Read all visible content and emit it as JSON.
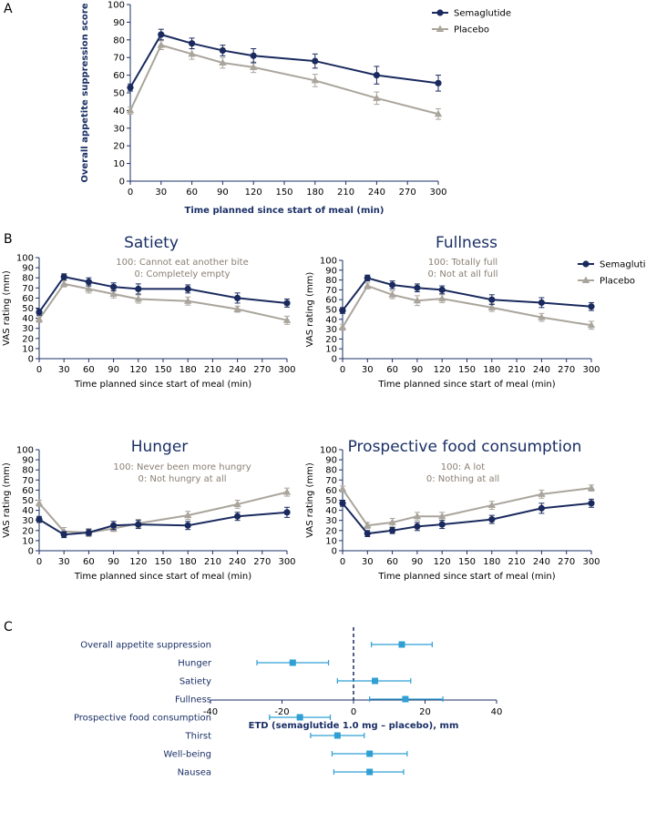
{
  "colors": {
    "semaglutide": "#1a2a5e",
    "placebo": "#aaa59c",
    "forest": "#2f9fd4",
    "axis": "#1a2f66",
    "annotation": "#8a7f73"
  },
  "panel_labels": [
    "A",
    "B",
    "C"
  ],
  "chart_data": [
    {
      "id": "A",
      "type": "line",
      "title": "",
      "xlabel": "Time planned since start of meal (min)",
      "ylabel": "Overall appetite suppression score",
      "x": [
        0,
        30,
        60,
        90,
        120,
        180,
        240,
        300
      ],
      "xticks": [
        0,
        30,
        60,
        90,
        120,
        150,
        180,
        210,
        240,
        270,
        300
      ],
      "xlim": [
        0,
        300
      ],
      "ylim": [
        0,
        100
      ],
      "yticks": [
        0,
        10,
        20,
        30,
        40,
        50,
        60,
        70,
        80,
        90,
        100
      ],
      "legend": "top-right",
      "series": [
        {
          "name": "Semaglutide",
          "marker": "circle",
          "values": [
            53,
            83,
            78,
            74,
            71,
            68,
            60,
            55.5
          ],
          "err": [
            2,
            3,
            3,
            3,
            4,
            4,
            5,
            4.5
          ]
        },
        {
          "name": "Placebo",
          "marker": "triangle",
          "values": [
            40,
            77,
            72,
            67,
            64.5,
            57,
            47,
            38
          ],
          "err": [
            2,
            2.5,
            3,
            3,
            3,
            3.5,
            3.5,
            3
          ]
        }
      ]
    },
    {
      "id": "B1",
      "type": "line",
      "title": "Satiety",
      "annotation": [
        "100: Cannot eat another bite",
        "0: Completely empty"
      ],
      "xlabel": "Time planned since start of meal (min)",
      "ylabel": "VAS rating (mm)",
      "x": [
        0,
        30,
        60,
        90,
        120,
        180,
        240,
        300
      ],
      "xticks": [
        0,
        30,
        60,
        90,
        120,
        150,
        180,
        210,
        240,
        270,
        300
      ],
      "xlim": [
        0,
        300
      ],
      "ylim": [
        0,
        100
      ],
      "yticks": [
        0,
        10,
        20,
        30,
        40,
        50,
        60,
        70,
        80,
        90,
        100
      ],
      "series": [
        {
          "name": "Semaglutide",
          "marker": "circle",
          "values": [
            46,
            81,
            76,
            71,
            69,
            69,
            60,
            55
          ],
          "err": [
            3,
            3,
            4,
            4,
            5,
            4,
            5,
            4
          ]
        },
        {
          "name": "Placebo",
          "marker": "triangle",
          "values": [
            39,
            74,
            69,
            64,
            59,
            57,
            49,
            38
          ],
          "err": [
            3,
            3,
            4,
            4,
            4,
            4,
            3,
            4
          ]
        }
      ]
    },
    {
      "id": "B2",
      "type": "line",
      "title": "Fullness",
      "annotation": [
        "100: Totally full",
        "0: Not at all full"
      ],
      "xlabel": "Time planned since start of meal (min)",
      "ylabel": "VAS rating (mm)",
      "x": [
        0,
        30,
        60,
        90,
        120,
        180,
        240,
        300
      ],
      "xticks": [
        0,
        30,
        60,
        90,
        120,
        150,
        180,
        210,
        240,
        270,
        300
      ],
      "xlim": [
        0,
        300
      ],
      "ylim": [
        0,
        100
      ],
      "yticks": [
        0,
        10,
        20,
        30,
        40,
        50,
        60,
        70,
        80,
        90,
        100
      ],
      "legend": "top-right",
      "series": [
        {
          "name": "Semaglutide",
          "marker": "circle",
          "values": [
            49,
            82,
            75,
            72,
            70,
            60,
            57,
            53
          ],
          "err": [
            3,
            3,
            4,
            4,
            4,
            5,
            5,
            4
          ]
        },
        {
          "name": "Placebo",
          "marker": "triangle",
          "values": [
            32,
            74,
            65,
            59,
            61,
            52,
            42,
            34
          ],
          "err": [
            3,
            3,
            4,
            5,
            4,
            4,
            4,
            4
          ]
        }
      ]
    },
    {
      "id": "B3",
      "type": "line",
      "title": "Hunger",
      "annotation": [
        "100: Never been more hungry",
        "0: Not hungry at all"
      ],
      "xlabel": "Time planned since start of meal (min)",
      "ylabel": "VAS rating (mm)",
      "x": [
        0,
        30,
        60,
        90,
        120,
        180,
        240,
        300
      ],
      "xticks": [
        0,
        30,
        60,
        90,
        120,
        150,
        180,
        210,
        240,
        270,
        300
      ],
      "xlim": [
        0,
        300
      ],
      "ylim": [
        0,
        100
      ],
      "yticks": [
        0,
        10,
        20,
        30,
        40,
        50,
        60,
        70,
        80,
        90,
        100
      ],
      "series": [
        {
          "name": "Semaglutide",
          "marker": "circle",
          "values": [
            31,
            16,
            18,
            25,
            26,
            25,
            34,
            38
          ],
          "err": [
            3,
            3,
            3,
            4,
            4,
            4,
            4,
            5
          ]
        },
        {
          "name": "Placebo",
          "marker": "triangle",
          "values": [
            47,
            19,
            18,
            22,
            27,
            35,
            46,
            58
          ],
          "err": [
            3,
            4,
            4,
            3,
            4,
            4,
            4,
            4
          ]
        }
      ]
    },
    {
      "id": "B4",
      "type": "line",
      "title": "Prospective food consumption",
      "annotation": [
        "100: A lot",
        "0: Nothing at all"
      ],
      "xlabel": "Time planned since start of meal (min)",
      "ylabel": "VAS rating (mm)",
      "x": [
        0,
        30,
        60,
        90,
        120,
        180,
        240,
        300
      ],
      "xticks": [
        0,
        30,
        60,
        90,
        120,
        150,
        180,
        210,
        240,
        270,
        300
      ],
      "xlim": [
        0,
        300
      ],
      "ylim": [
        0,
        100
      ],
      "yticks": [
        0,
        10,
        20,
        30,
        40,
        50,
        60,
        70,
        80,
        90,
        100
      ],
      "series": [
        {
          "name": "Semaglutide",
          "marker": "circle",
          "values": [
            47,
            17,
            20,
            24,
            26,
            31,
            42,
            47
          ],
          "err": [
            3,
            3,
            3,
            4,
            4,
            4,
            5,
            4
          ]
        },
        {
          "name": "Placebo",
          "marker": "triangle",
          "values": [
            61,
            25,
            28,
            34,
            34,
            45,
            56,
            62
          ],
          "err": [
            3,
            3,
            4,
            4,
            4,
            4,
            4,
            3
          ]
        }
      ]
    },
    {
      "id": "C",
      "type": "forest",
      "title": "",
      "xlabel": "ETD (semaglutide 1.0 mg – placebo), mm",
      "xlim": [
        -40,
        40
      ],
      "xticks": [
        -40,
        -20,
        0,
        20,
        40
      ],
      "categories": [
        "Overall appetite suppression",
        "Hunger",
        "Satiety",
        "Fullness",
        "Prospective food consumption",
        "Thirst",
        "Well-being",
        "Nausea"
      ],
      "values": [
        13.5,
        -17,
        6,
        14.5,
        -15,
        -4.5,
        4.5,
        4.5
      ],
      "ci_low": [
        5,
        -27,
        -4.5,
        4.5,
        -23.5,
        -12,
        -6,
        -5.5
      ],
      "ci_high": [
        22,
        -7,
        16,
        25,
        -6.5,
        3,
        15,
        14
      ]
    }
  ]
}
